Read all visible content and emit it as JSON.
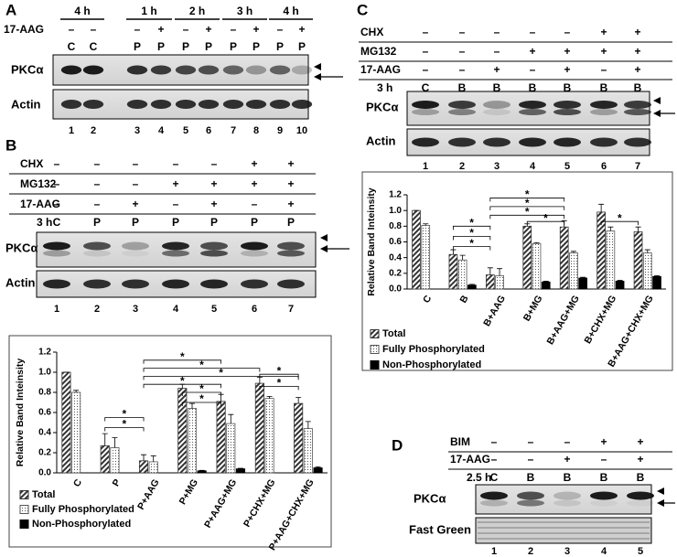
{
  "panels": {
    "A": {
      "label": "A",
      "times": [
        "4 h",
        "1 h",
        "2 h",
        "3 h",
        "4 h"
      ],
      "row_label": "17-AAG",
      "marks": [
        "–",
        "–",
        "–",
        "+",
        "–",
        "+",
        "–",
        "+",
        "–",
        "+"
      ],
      "conditions": [
        "C",
        "C",
        "P",
        "P",
        "P",
        "P",
        "P",
        "P",
        "P",
        "P"
      ],
      "blots": [
        "PKCα",
        "Actin"
      ],
      "lanes": [
        "1",
        "2",
        "3",
        "4",
        "5",
        "6",
        "7",
        "8",
        "9",
        "10"
      ]
    },
    "B": {
      "label": "B",
      "rows": [
        {
          "name": "CHX",
          "marks": [
            "–",
            "–",
            "–",
            "–",
            "–",
            "+",
            "+"
          ]
        },
        {
          "name": "MG132",
          "marks": [
            "–",
            "–",
            "–",
            "+",
            "+",
            "+",
            "+"
          ]
        },
        {
          "name": "17-AAG",
          "marks": [
            "–",
            "–",
            "+",
            "–",
            "+",
            "–",
            "+"
          ]
        }
      ],
      "time": "3 h",
      "conditions": [
        "C",
        "P",
        "P",
        "P",
        "P",
        "P",
        "P"
      ],
      "blots": [
        "PKCα",
        "Actin"
      ],
      "lanes": [
        "1",
        "2",
        "3",
        "4",
        "5",
        "6",
        "7"
      ]
    },
    "C": {
      "label": "C",
      "rows": [
        {
          "name": "CHX",
          "marks": [
            "–",
            "–",
            "–",
            "–",
            "–",
            "+",
            "+"
          ]
        },
        {
          "name": "MG132",
          "marks": [
            "–",
            "–",
            "–",
            "+",
            "+",
            "+",
            "+"
          ]
        },
        {
          "name": "17-AAG",
          "marks": [
            "–",
            "–",
            "+",
            "–",
            "+",
            "–",
            "+"
          ]
        }
      ],
      "time": "3 h",
      "conditions": [
        "C",
        "B",
        "B",
        "B",
        "B",
        "B",
        "B"
      ],
      "blots": [
        "PKCα",
        "Actin"
      ],
      "lanes": [
        "1",
        "2",
        "3",
        "4",
        "5",
        "6",
        "7"
      ]
    },
    "D": {
      "label": "D",
      "rows": [
        {
          "name": "BIM",
          "marks": [
            "–",
            "–",
            "–",
            "+",
            "+"
          ]
        },
        {
          "name": "17-AAG",
          "marks": [
            "–",
            "–",
            "+",
            "–",
            "+"
          ]
        }
      ],
      "time": "2.5 h",
      "conditions": [
        "C",
        "B",
        "B",
        "B",
        "B"
      ],
      "blots": [
        "PKCα",
        "Fast Green"
      ],
      "lanes": [
        "1",
        "2",
        "3",
        "4",
        "5"
      ]
    }
  },
  "chart_data": [
    {
      "type": "bar",
      "y_label": "Relative Band Inteinsity",
      "categories": [
        "C",
        "P",
        "P+AAG",
        "P+MG",
        "P+AAG+MG",
        "P+CHX+MG",
        "P+AAG+CHX+MG"
      ],
      "series": [
        {
          "name": "Total",
          "color": "#333333",
          "pattern": "hatch",
          "values": [
            1.0,
            0.27,
            0.12,
            0.84,
            0.71,
            0.89,
            0.69
          ],
          "errors": [
            0,
            0.12,
            0.06,
            0.04,
            0.07,
            0.06,
            0.06
          ]
        },
        {
          "name": "Fully Phosphorylated",
          "color": "#555555",
          "pattern": "dots",
          "values": [
            0.8,
            0.25,
            0.11,
            0.64,
            0.49,
            0.74,
            0.44
          ],
          "errors": [
            0.02,
            0.1,
            0.06,
            0.05,
            0.09,
            0.02,
            0.07
          ]
        },
        {
          "name": "Non-Phosphorylated",
          "color": "#000000",
          "pattern": "solid",
          "values": [
            0.0,
            0.0,
            0.0,
            0.02,
            0.04,
            0.0,
            0.05
          ],
          "errors": [
            0,
            0,
            0,
            0.005,
            0.005,
            0,
            0.01
          ]
        }
      ],
      "ylim": [
        0,
        1.2
      ],
      "yticks": [
        {
          "value": 0,
          "label": "0.0"
        },
        {
          "value": 0.2,
          "label": "0.2"
        },
        {
          "value": 0.4,
          "label": "0.4"
        },
        {
          "value": 0.6,
          "label": "0.6"
        },
        {
          "value": 0.8,
          "label": "0.8"
        },
        {
          "value": 1.0,
          "label": "1.0"
        },
        {
          "value": 1.2,
          "label": "1.2"
        }
      ],
      "significance": [
        "*",
        "*",
        "*",
        "*",
        "*",
        "*",
        "*",
        "*",
        "*",
        "*"
      ]
    },
    {
      "type": "bar",
      "y_label": "Relative Band Inteinsity",
      "categories": [
        "C",
        "B",
        "B+AAG",
        "B+MG",
        "B+AAG+MG",
        "B+CHX+MG",
        "B+AAG+CHX+MG"
      ],
      "series": [
        {
          "name": "Total",
          "color": "#333333",
          "pattern": "hatch",
          "values": [
            1.0,
            0.44,
            0.18,
            0.8,
            0.79,
            0.98,
            0.73
          ],
          "errors": [
            0,
            0.06,
            0.09,
            0.03,
            0.08,
            0.1,
            0.06
          ]
        },
        {
          "name": "Fully Phosphorylated",
          "color": "#555555",
          "pattern": "dots",
          "values": [
            0.81,
            0.37,
            0.17,
            0.58,
            0.46,
            0.74,
            0.46
          ],
          "errors": [
            0.02,
            0.06,
            0.09,
            0.01,
            0.02,
            0.05,
            0.04
          ]
        },
        {
          "name": "Non-Phosphorylated",
          "color": "#000000",
          "pattern": "solid",
          "values": [
            0.0,
            0.05,
            0.0,
            0.09,
            0.14,
            0.1,
            0.16
          ],
          "errors": [
            0,
            0.01,
            0,
            0.01,
            0.01,
            0.01,
            0.01
          ]
        }
      ],
      "ylim": [
        0,
        1.2
      ],
      "yticks": [
        {
          "value": 0,
          "label": "0.0"
        },
        {
          "value": 0.2,
          "label": "0.2"
        },
        {
          "value": 0.4,
          "label": "0.4"
        },
        {
          "value": 0.6,
          "label": "0.6"
        },
        {
          "value": 0.8,
          "label": "0.8"
        },
        {
          "value": 1.0,
          "label": "1.0"
        },
        {
          "value": 1.2,
          "label": "1.2"
        }
      ],
      "significance": [
        "*",
        "*",
        "*",
        "*",
        "*",
        "*",
        "*",
        "*"
      ]
    }
  ]
}
